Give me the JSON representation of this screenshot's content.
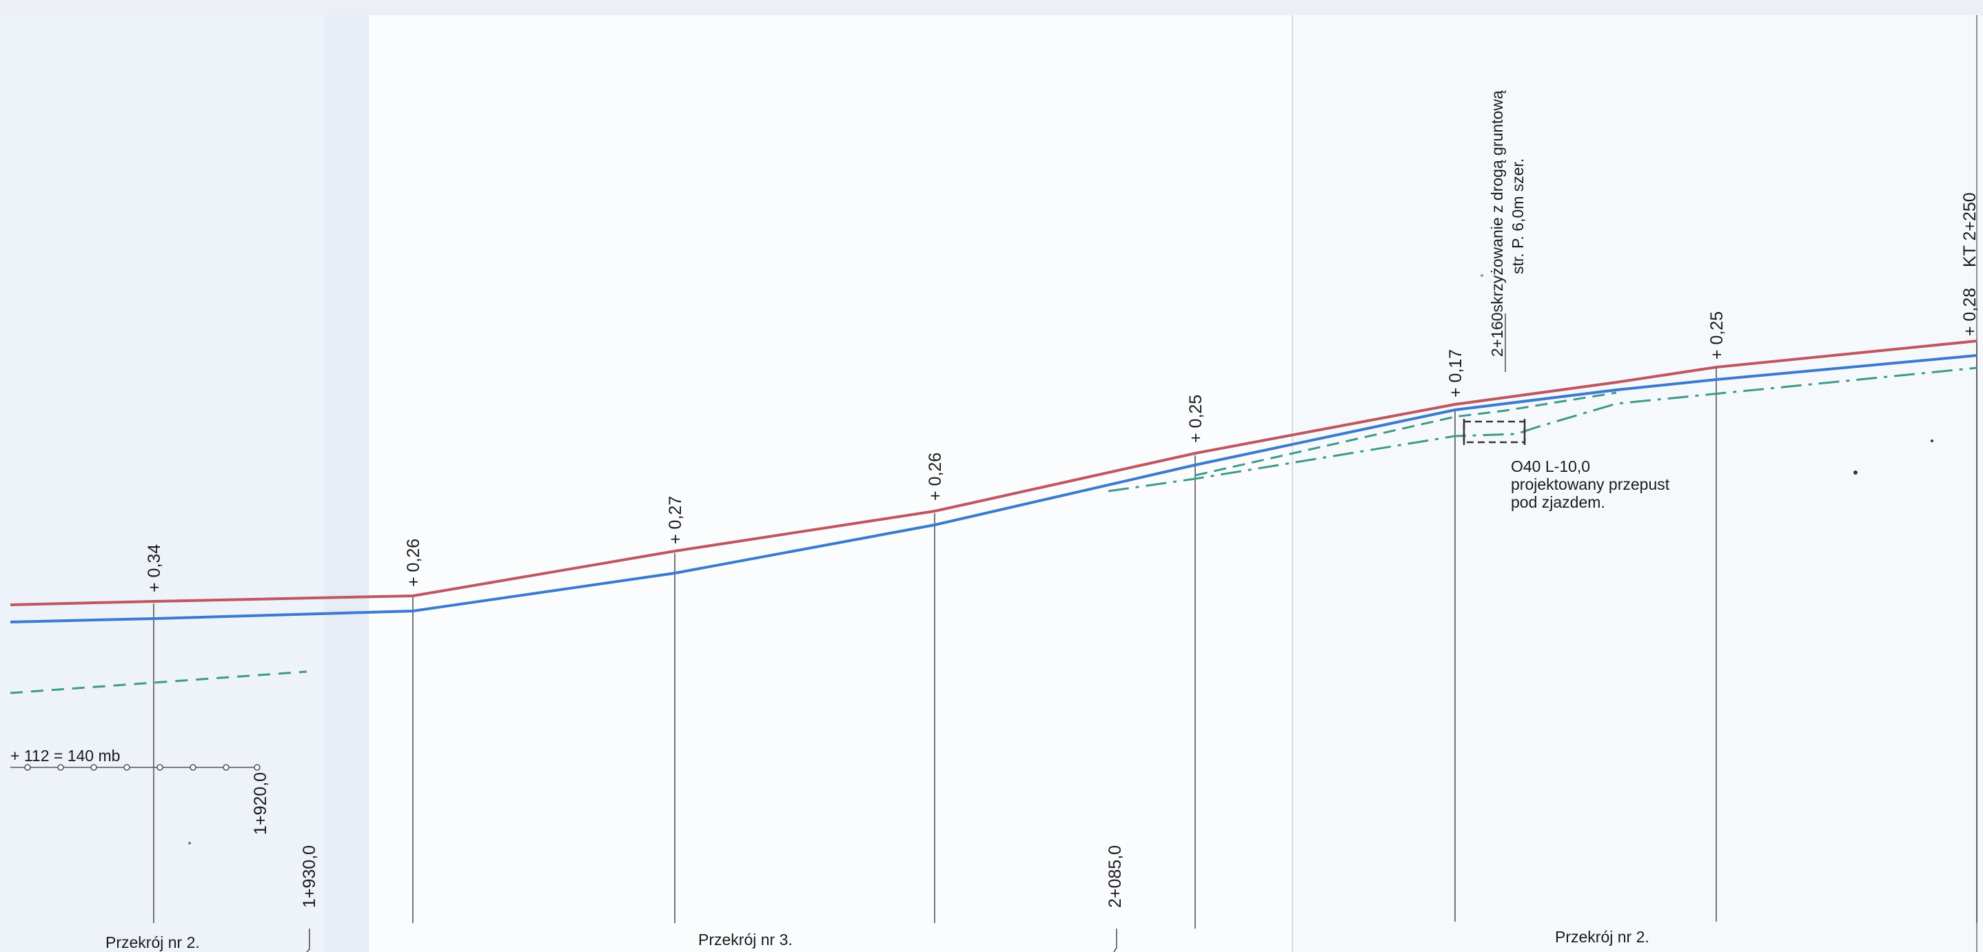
{
  "colors": {
    "design_line": "#c0565f",
    "terrain_line": "#3a7bcf",
    "drainage": "#3e9a8a",
    "station_line": "#555555",
    "text": "#1a1a1a",
    "paper_shade": "#eef3f9"
  },
  "offsets": {
    "s1": "+ 0,34",
    "s2": "+ 0,26",
    "s3": "+ 0,27",
    "s4": "+ 0,26",
    "s5": "+ 0,25",
    "s6": "+ 0,17",
    "s7": "+ 0,25",
    "s8": "+ 0,28"
  },
  "stations": {
    "end_point": "KT 2+250",
    "sta_1920": "1+920,0",
    "sta_1930": "1+930,0",
    "sta_2085": "2+085,0"
  },
  "notes": {
    "intersection_line1": "2+160skrzyżowanie z drogą gruntową",
    "intersection_line2": "str. P. 6,0m szer.",
    "culvert_line1": "O40 L-10,0",
    "culvert_line2": "projektowany przepust",
    "culvert_line3": "pod zjazdem.",
    "length_note": "+ 112 = 140 mb"
  },
  "sections": {
    "left": "Przekrój nr 2.",
    "middle": "Przekrój nr 3.",
    "right": "Przekrój nr 2."
  }
}
